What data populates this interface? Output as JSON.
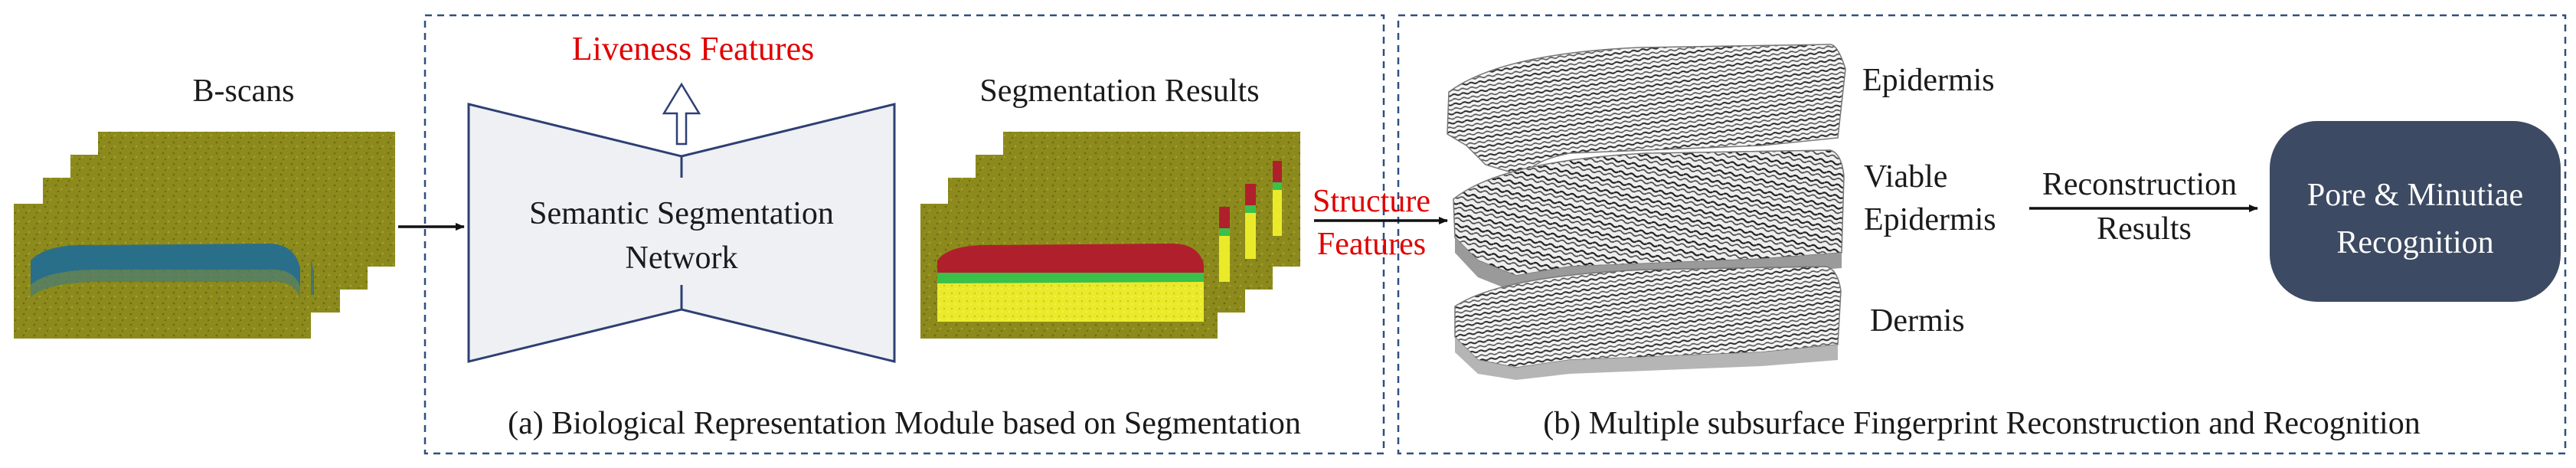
{
  "labels": {
    "bscans": "B-scans",
    "liveness": "Liveness Features",
    "network_line1": "Semantic Segmentation",
    "network_line2": "Network",
    "seg_results": "Segmentation Results",
    "structure_line1": "Structure",
    "structure_line2": "Features",
    "caption_a": "(a) Biological Representation Module based on Segmentation",
    "epidermis": "Epidermis",
    "viable_line1": "Viable",
    "viable_line2": "Epidermis",
    "dermis": "Dermis",
    "recon_line1": "Reconstruction",
    "recon_line2": "Results",
    "pore_line1": "Pore & Minutiae",
    "pore_line2": "Recognition",
    "caption_b": "(b) Multiple subsurface Fingerprint Reconstruction and Recognition"
  },
  "colors": {
    "module_border": "#2f4f7f",
    "highlight_text": "#e00000",
    "network_fill": "#eef0f4",
    "network_stroke": "#2e3f73",
    "recognition_box": "#3d4a63",
    "scan_background": "#8c8a1c",
    "seg_red": "#b0202c",
    "seg_green": "#39c14a",
    "seg_yellow": "#eaea2a",
    "scan_blue_layer": "#2a6f8a"
  },
  "icons": {
    "output_arrow": "hollow-up-arrow",
    "flow_arrows": "right-arrow"
  }
}
